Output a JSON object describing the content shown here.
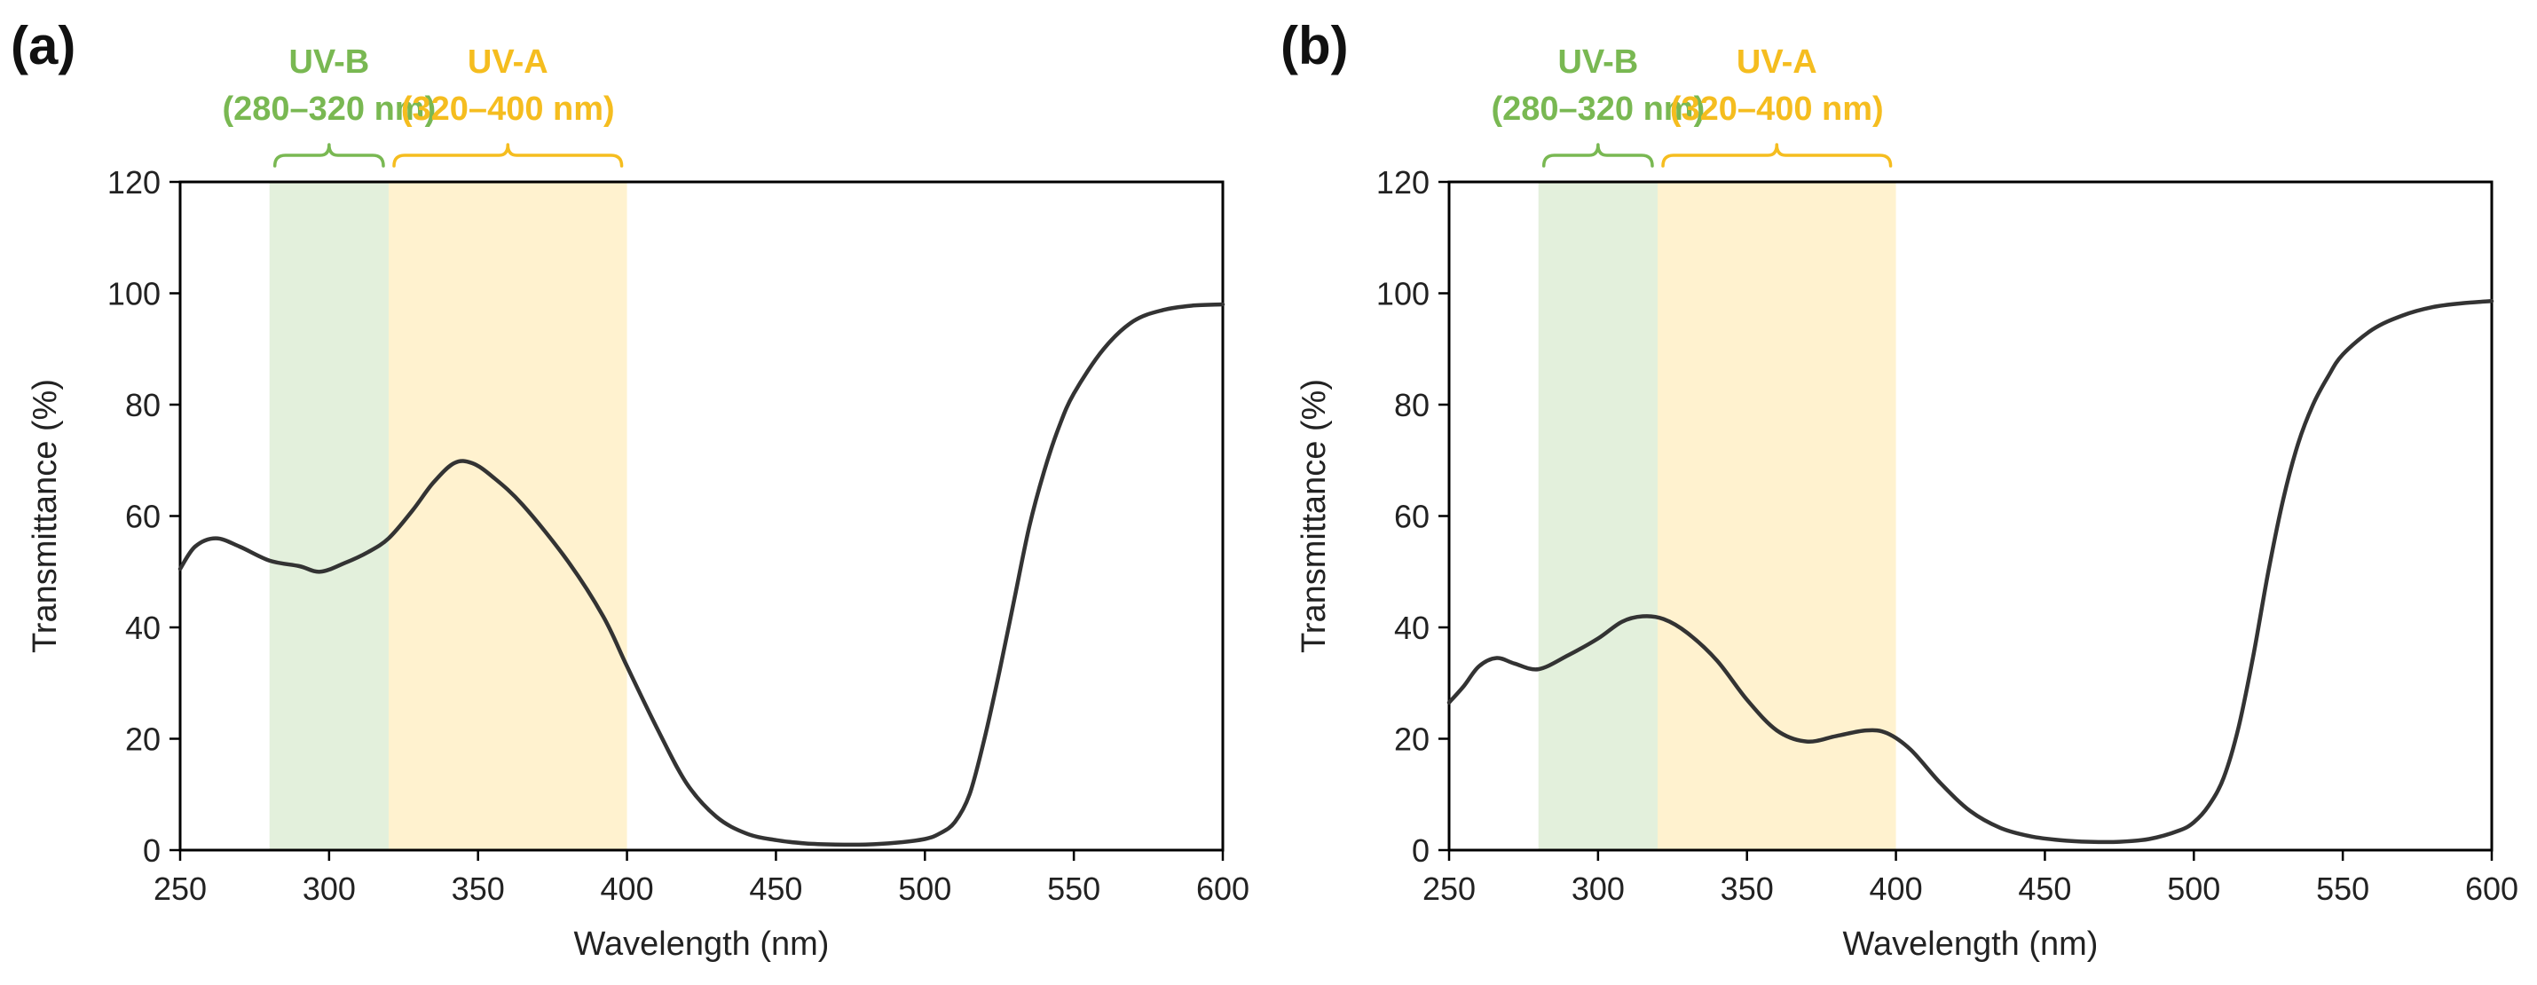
{
  "chart_data": [
    {
      "type": "line",
      "panel": "(a)",
      "xlabel": "Wavelength (nm)",
      "ylabel": "Transmittance (%)",
      "xlim": [
        250,
        600
      ],
      "ylim": [
        0,
        120
      ],
      "xticks": [
        250,
        300,
        350,
        400,
        450,
        500,
        550,
        600
      ],
      "yticks": [
        0,
        20,
        40,
        60,
        80,
        100,
        120
      ],
      "bands": [
        {
          "name": "UV-B",
          "range_label": "(280–320 nm)",
          "start": 280,
          "end": 320,
          "fill": "#e3f0dc",
          "label_color": "#79b852"
        },
        {
          "name": "UV-A",
          "range_label": "(320–400 nm)",
          "start": 320,
          "end": 400,
          "fill": "#fff2cf",
          "label_color": "#f5bd1f"
        }
      ],
      "series": [
        {
          "name": "transmittance",
          "x": [
            250,
            255,
            262,
            270,
            280,
            290,
            297,
            305,
            313,
            320,
            328,
            335,
            342,
            348,
            355,
            365,
            380,
            392,
            400,
            410,
            420,
            430,
            440,
            450,
            460,
            470,
            480,
            490,
            500,
            505,
            510,
            515,
            520,
            525,
            530,
            535,
            540,
            545,
            550,
            560,
            570,
            580,
            590,
            600
          ],
          "y": [
            50.5,
            54.5,
            56,
            54.5,
            52,
            51,
            50,
            51.5,
            53.5,
            56,
            61,
            66,
            69.5,
            69.5,
            67,
            62,
            52,
            42,
            33,
            22,
            12,
            6,
            3,
            1.8,
            1.2,
            1,
            1,
            1.3,
            2,
            3,
            5,
            10,
            20,
            32,
            45,
            58,
            68,
            76,
            82,
            90,
            95,
            97,
            97.8,
            98
          ]
        }
      ]
    },
    {
      "type": "line",
      "panel": "(b)",
      "xlabel": "Wavelength (nm)",
      "ylabel": "Transmittance (%)",
      "xlim": [
        250,
        600
      ],
      "ylim": [
        0,
        120
      ],
      "xticks": [
        250,
        300,
        350,
        400,
        450,
        500,
        550,
        600
      ],
      "yticks": [
        0,
        20,
        40,
        60,
        80,
        100,
        120
      ],
      "bands": [
        {
          "name": "UV-B",
          "range_label": "(280–320 nm)",
          "start": 280,
          "end": 320,
          "fill": "#e3f0dc",
          "label_color": "#79b852"
        },
        {
          "name": "UV-A",
          "range_label": "(320–400 nm)",
          "start": 320,
          "end": 400,
          "fill": "#fff2cf",
          "label_color": "#f5bd1f"
        }
      ],
      "series": [
        {
          "name": "transmittance",
          "x": [
            250,
            255,
            260,
            266,
            272,
            280,
            290,
            300,
            308,
            315,
            322,
            330,
            340,
            350,
            360,
            370,
            380,
            390,
            397,
            405,
            415,
            425,
            435,
            445,
            455,
            465,
            475,
            485,
            495,
            500,
            505,
            510,
            515,
            520,
            525,
            530,
            535,
            540,
            545,
            550,
            560,
            570,
            580,
            590,
            600
          ],
          "y": [
            26.5,
            29.5,
            33,
            34.5,
            33.5,
            32.5,
            35,
            38,
            41,
            42,
            41.5,
            39,
            34,
            27,
            21.5,
            19.5,
            20.5,
            21.5,
            21,
            18,
            12,
            7,
            4,
            2.5,
            1.8,
            1.5,
            1.5,
            2,
            3.5,
            5,
            8,
            13,
            22,
            35,
            50,
            63,
            73,
            80,
            85,
            89,
            93.5,
            96,
            97.5,
            98.2,
            98.6
          ]
        }
      ]
    }
  ]
}
